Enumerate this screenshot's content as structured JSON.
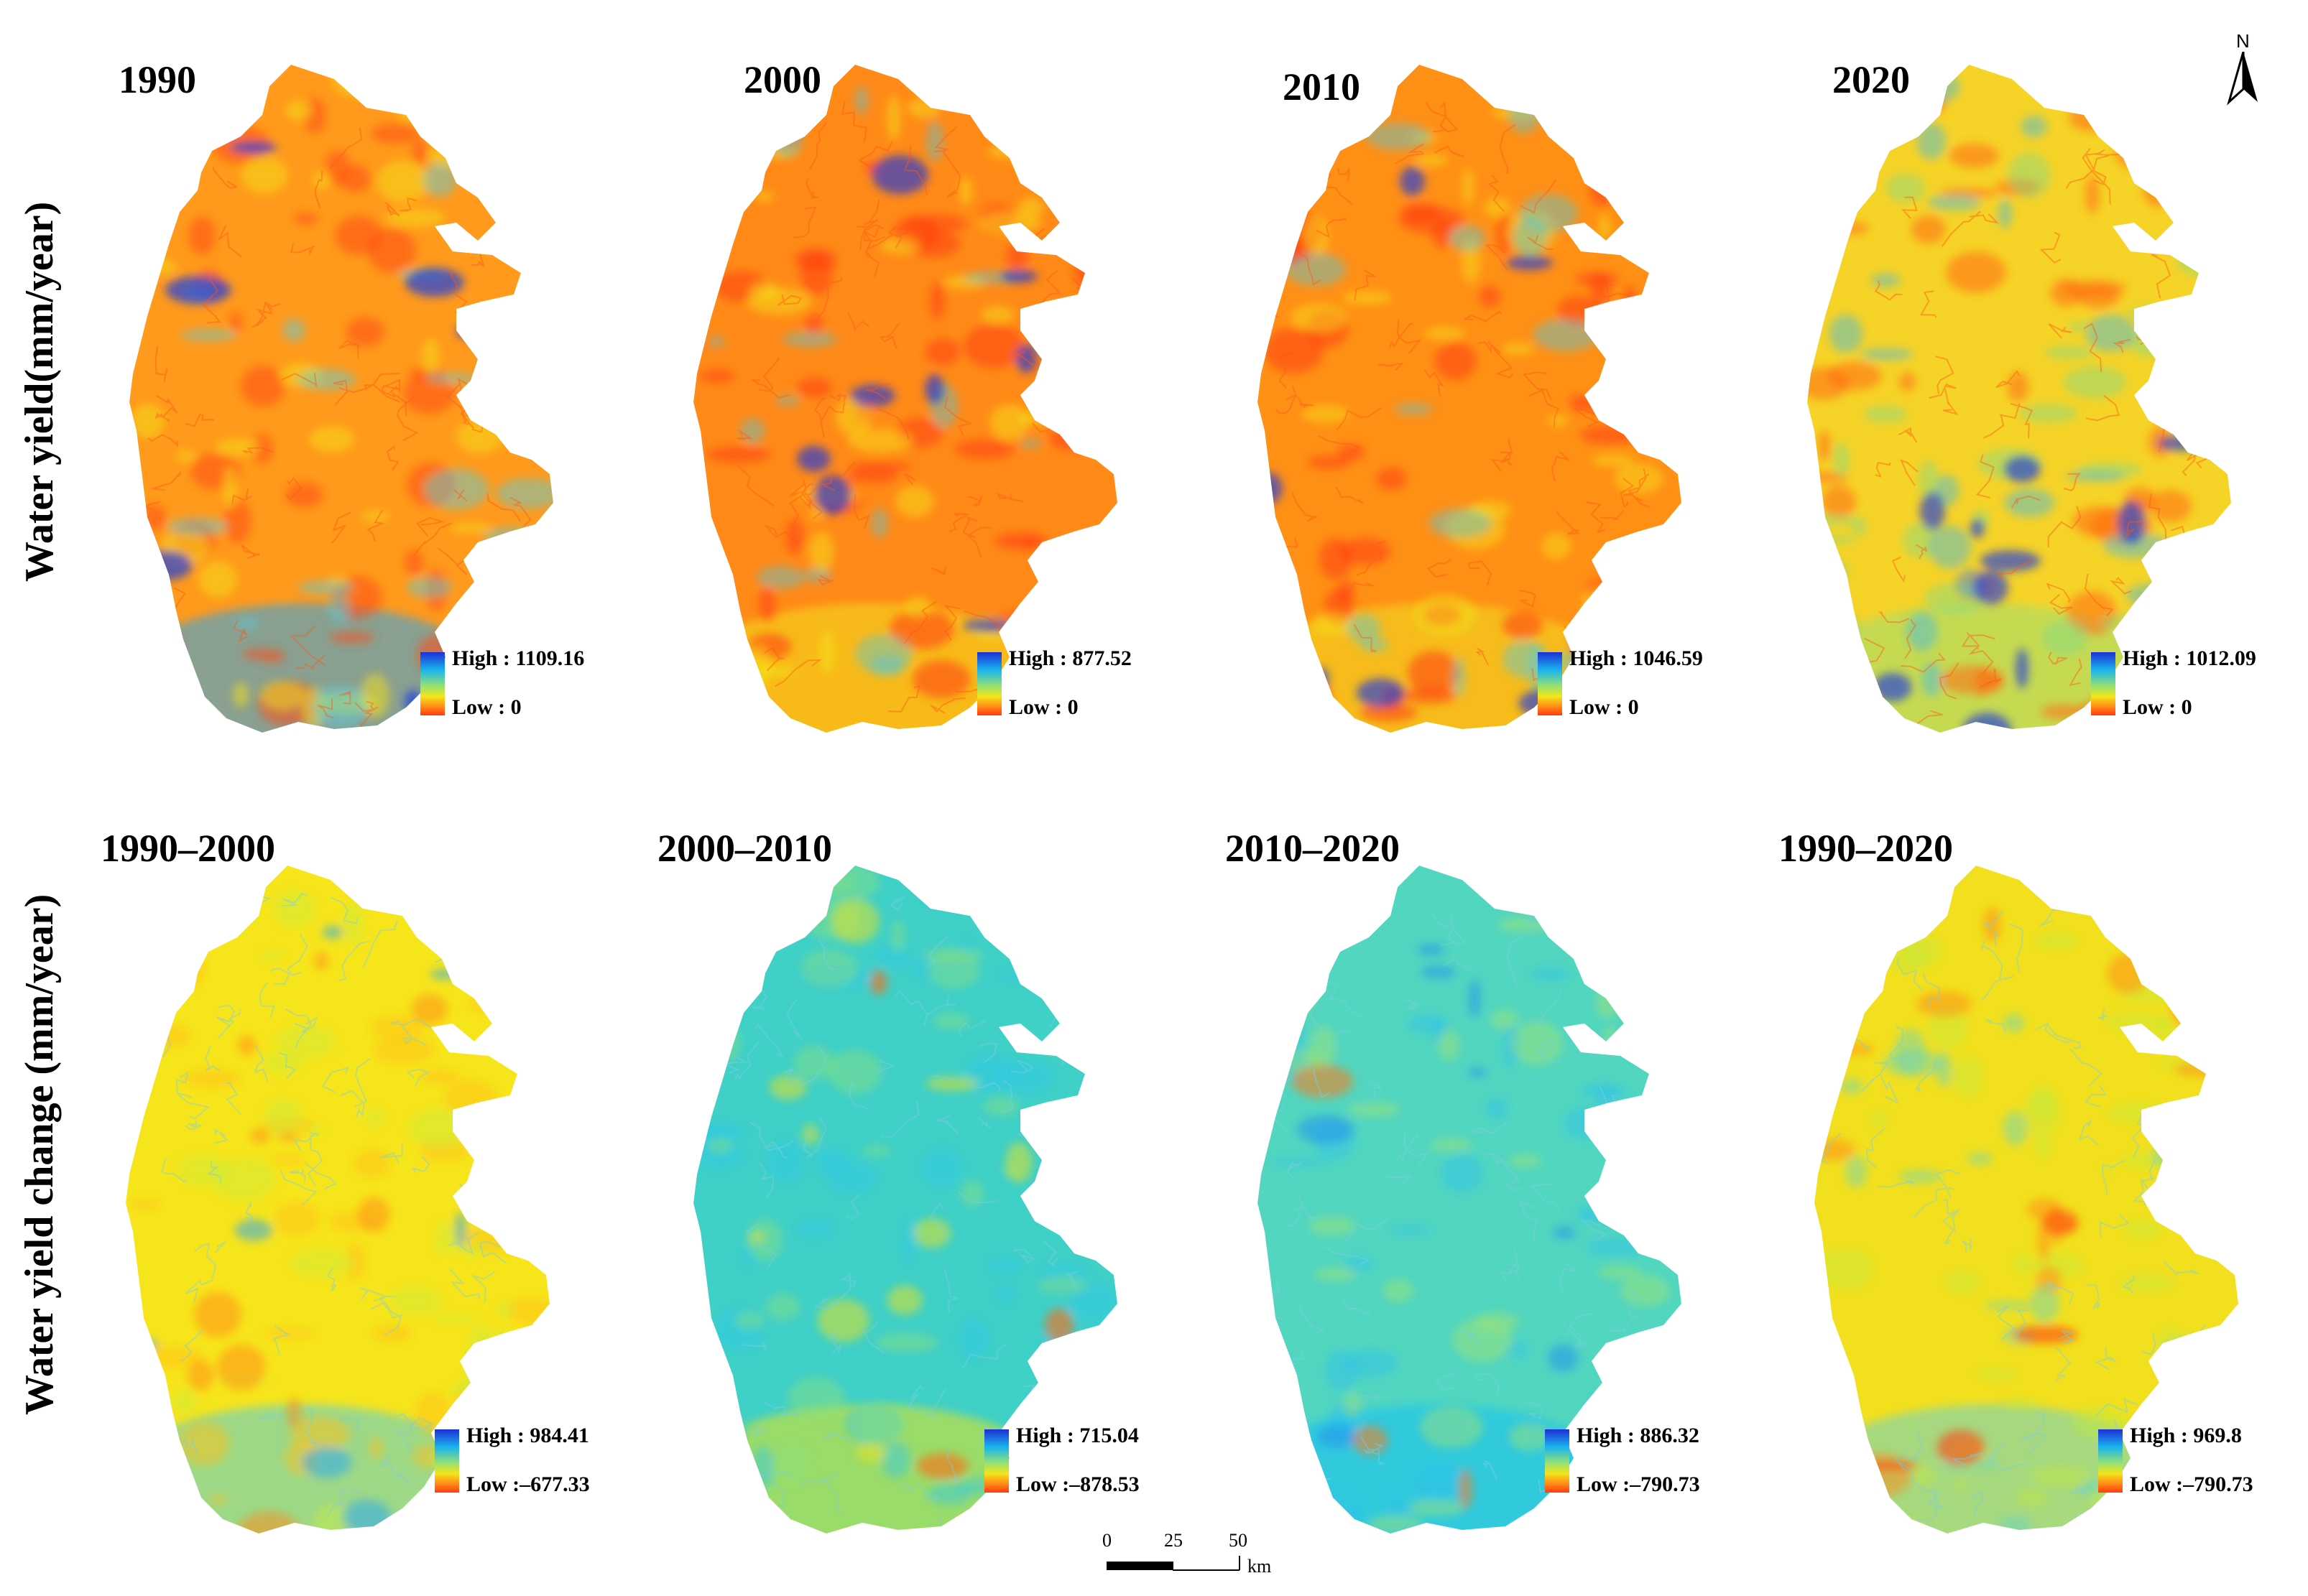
{
  "row_labels": {
    "top": "Water yield(mm/year)",
    "bottom": "Water yield change (mm/year)"
  },
  "panels": [
    {
      "title": "1990",
      "high": "High : 1109.16",
      "low": "Low : 0",
      "theme": "yield-1990"
    },
    {
      "title": "2000",
      "high": "High : 877.52",
      "low": "Low : 0",
      "theme": "yield-2000"
    },
    {
      "title": "2010",
      "high": "High : 1046.59",
      "low": "Low : 0",
      "theme": "yield-2010"
    },
    {
      "title": "2020",
      "high": "High : 1012.09",
      "low": "Low : 0",
      "theme": "yield-2020"
    },
    {
      "title": "1990–2000",
      "high": "High : 984.41",
      "low": "Low :–677.33",
      "theme": "change-1990-2000"
    },
    {
      "title": "2000–2010",
      "high": "High : 715.04",
      "low": "Low :–878.53",
      "theme": "change-2000-2010"
    },
    {
      "title": "2010–2020",
      "high": "High : 886.32",
      "low": "Low :–790.73",
      "theme": "change-2010-2020"
    },
    {
      "title": "1990–2020",
      "high": "High : 969.8",
      "low": "Low :–790.73",
      "theme": "change-1990-2020"
    }
  ],
  "north_arrow": {
    "label": "N"
  },
  "scale_bar": {
    "ticks": [
      "0",
      "25",
      "50"
    ],
    "unit": "km"
  },
  "colors": {
    "ramp_high": "#1d2fd6",
    "ramp_mid": "#f4e51a",
    "ramp_low": "#ff3a10"
  }
}
